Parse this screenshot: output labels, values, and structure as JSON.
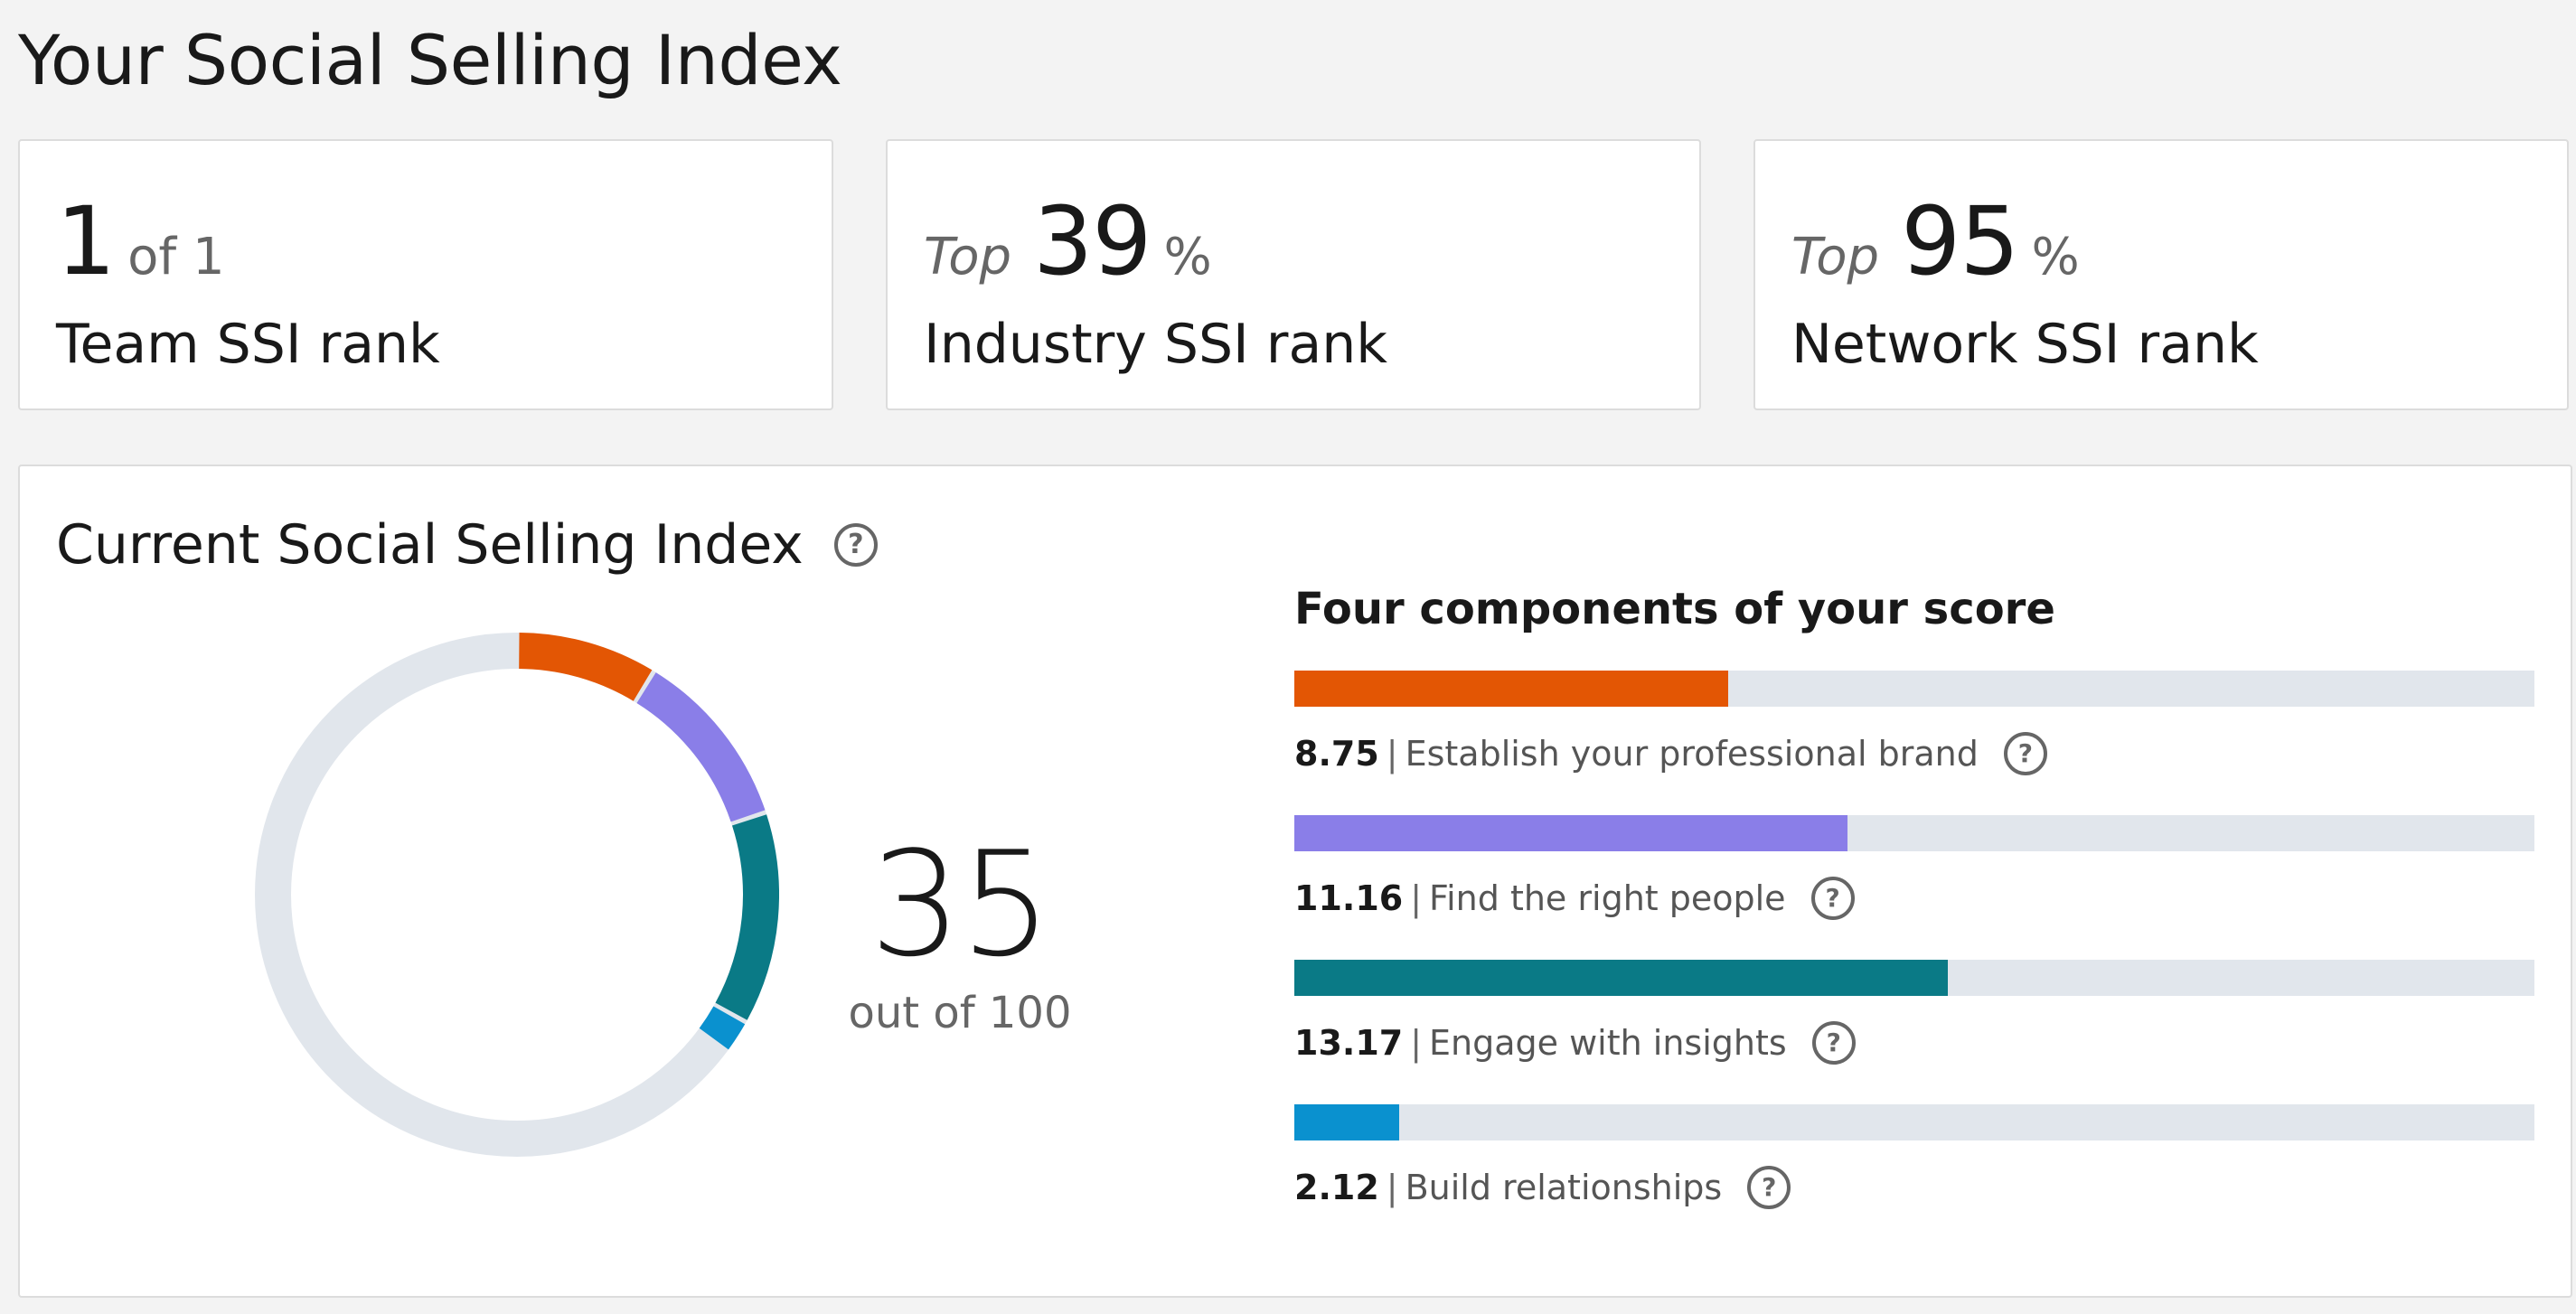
{
  "header": {
    "title": "Your Social Selling Index"
  },
  "rank_cards": [
    {
      "prefix": "",
      "value": "1",
      "suffix": "of 1",
      "label": "Team SSI rank"
    },
    {
      "prefix": "Top",
      "value": "39",
      "suffix": "%",
      "label": "Industry SSI rank"
    },
    {
      "prefix": "Top",
      "value": "95",
      "suffix": "%",
      "label": "Network SSI rank"
    }
  ],
  "current_ssi": {
    "title": "Current Social Selling Index",
    "help_icon": "question-circle-icon",
    "score": "35",
    "score_sub": "out of 100",
    "max": 100
  },
  "components": {
    "title": "Four components of your score",
    "max_per_component": 25,
    "items": [
      {
        "value": "8.75",
        "label": "Establish your professional brand",
        "color": "#e35604"
      },
      {
        "value": "11.16",
        "label": "Find the right people",
        "color": "#8a7ee8"
      },
      {
        "value": "13.17",
        "label": "Engage with insights",
        "color": "#0a7a86"
      },
      {
        "value": "2.12",
        "label": "Build relationships",
        "color": "#0a91cf"
      }
    ]
  },
  "colors": {
    "track": "#e1e6ec",
    "background": "#f3f3f3",
    "card": "#ffffff"
  }
}
